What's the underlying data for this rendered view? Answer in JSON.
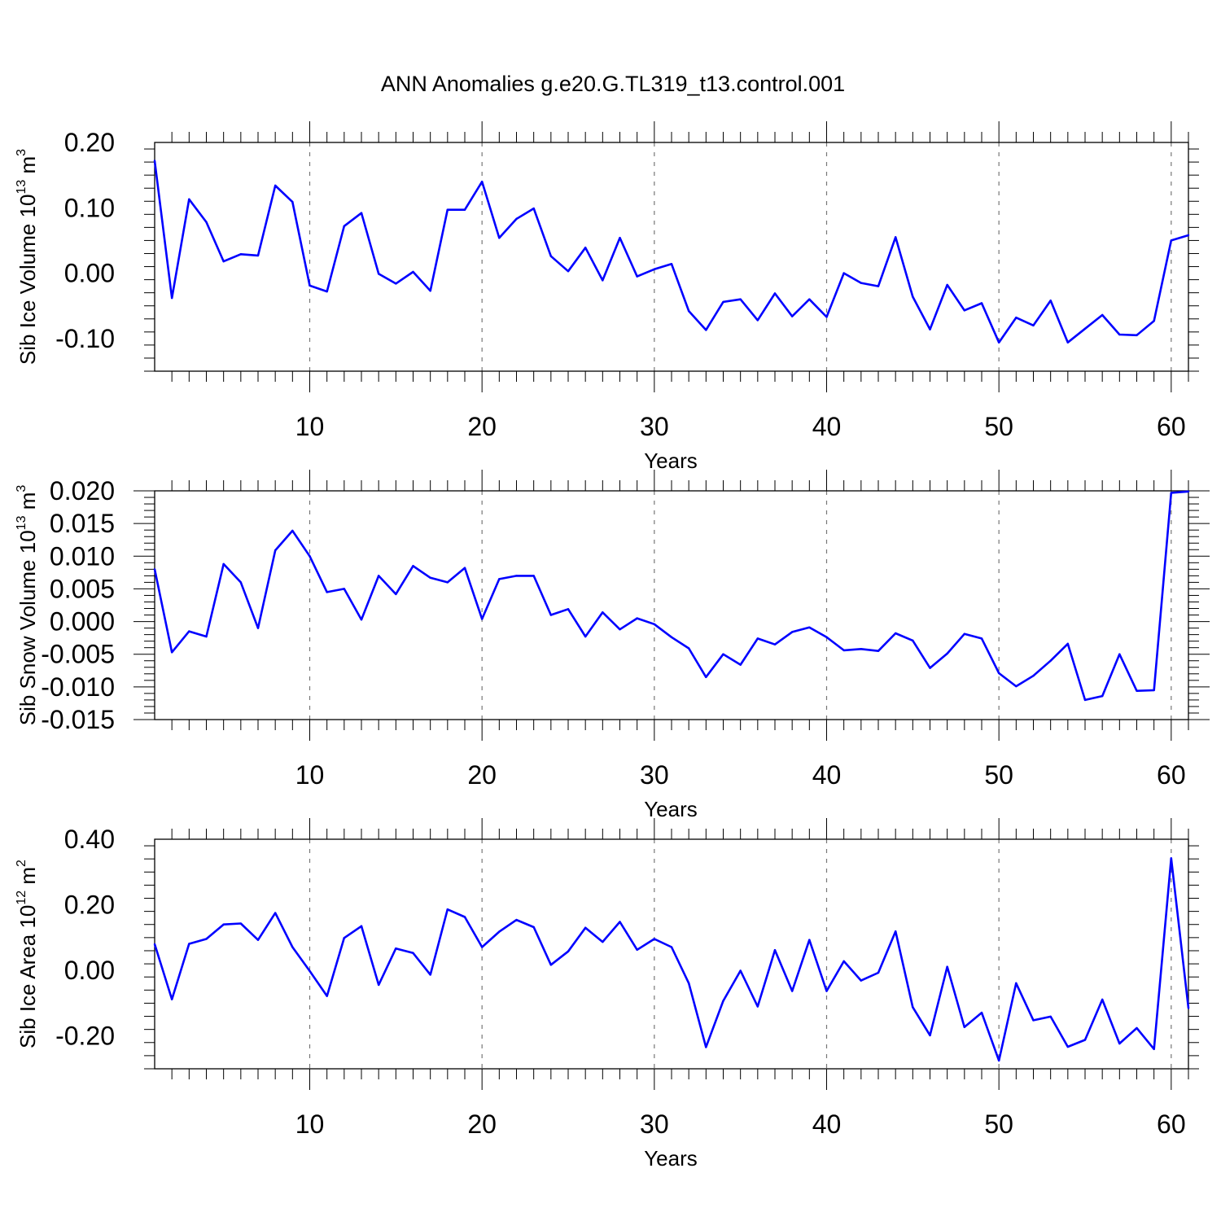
{
  "title": "ANN Anomalies g.e20.G.TL319_t13.control.001",
  "colors": {
    "series": "#0000ff",
    "grid": "#777777",
    "axes": "#000000"
  },
  "chart_data": [
    {
      "type": "line",
      "xlabel": "Years",
      "ylabel_text": "Sib Ice Volume 10",
      "ylabel_exp": "13",
      "ylabel_unit": " m",
      "ylabel_unit_exp": "3",
      "xlim": [
        1,
        61
      ],
      "ylim": [
        -0.15,
        0.2
      ],
      "y_ticks": [
        "0.20",
        "0.10",
        "0.00",
        "-0.10"
      ],
      "x_ticks": [
        "10",
        "20",
        "30",
        "40",
        "50",
        "60"
      ],
      "x_grid": "dashed at 10, 20, 30, 40, 50, 60",
      "x": [
        1,
        2,
        3,
        4,
        5,
        6,
        7,
        8,
        9,
        10,
        11,
        12,
        13,
        14,
        15,
        16,
        17,
        18,
        19,
        20,
        21,
        22,
        23,
        24,
        25,
        26,
        27,
        28,
        29,
        30,
        31,
        32,
        33,
        34,
        35,
        36,
        37,
        38,
        39,
        40,
        41,
        42,
        43,
        44,
        45,
        46,
        47,
        48,
        49,
        50,
        51,
        52,
        53,
        54,
        55,
        56,
        57,
        58,
        59,
        60,
        61
      ],
      "values": [
        0.172,
        -0.038,
        0.113,
        0.078,
        0.018,
        0.029,
        0.027,
        0.134,
        0.109,
        -0.019,
        -0.028,
        0.072,
        0.092,
        -0.001,
        -0.016,
        0.002,
        -0.027,
        0.097,
        0.097,
        0.14,
        0.054,
        0.083,
        0.099,
        0.026,
        0.003,
        0.039,
        -0.011,
        0.054,
        -0.005,
        0.006,
        0.014,
        -0.058,
        -0.087,
        -0.044,
        -0.04,
        -0.072,
        -0.031,
        -0.066,
        -0.04,
        -0.067,
        0.0,
        -0.015,
        -0.02,
        0.055,
        -0.036,
        -0.086,
        -0.018,
        -0.057,
        -0.046,
        -0.106,
        -0.068,
        -0.08,
        -0.042,
        -0.106,
        -0.085,
        -0.064,
        -0.094,
        -0.095,
        -0.073,
        0.05,
        0.058
      ]
    },
    {
      "type": "line",
      "xlabel": "Years",
      "ylabel_text": "Sib Snow Volume 10",
      "ylabel_exp": "13",
      "ylabel_unit": " m",
      "ylabel_unit_exp": "3",
      "xlim": [
        1,
        61
      ],
      "ylim": [
        -0.015,
        0.02
      ],
      "y_ticks": [
        "0.020",
        "0.015",
        "0.010",
        "0.005",
        "0.000",
        "-0.005",
        "-0.010",
        "-0.015"
      ],
      "x_ticks": [
        "10",
        "20",
        "30",
        "40",
        "50",
        "60"
      ],
      "x_grid": "dashed at 10, 20, 30, 40, 50, 60",
      "x": [
        1,
        2,
        3,
        4,
        5,
        6,
        7,
        8,
        9,
        10,
        11,
        12,
        13,
        14,
        15,
        16,
        17,
        18,
        19,
        20,
        21,
        22,
        23,
        24,
        25,
        26,
        27,
        28,
        29,
        30,
        31,
        32,
        33,
        34,
        35,
        36,
        37,
        38,
        39,
        40,
        41,
        42,
        43,
        44,
        45,
        46,
        47,
        48,
        49,
        50,
        51,
        52,
        53,
        54,
        55,
        56,
        57,
        58,
        59,
        60,
        61
      ],
      "values": [
        0.008,
        -0.0047,
        -0.0015,
        -0.0023,
        0.0088,
        0.006,
        -0.001,
        0.0109,
        0.0139,
        0.01,
        0.0045,
        0.005,
        0.0003,
        0.007,
        0.0042,
        0.0085,
        0.0067,
        0.006,
        0.0082,
        0.0004,
        0.0065,
        0.007,
        0.007,
        0.001,
        0.0019,
        -0.0023,
        0.0014,
        -0.0012,
        0.0005,
        -0.0004,
        -0.0024,
        -0.0041,
        -0.0085,
        -0.005,
        -0.0066,
        -0.0026,
        -0.0035,
        -0.0016,
        -0.0009,
        -0.0024,
        -0.0044,
        -0.0042,
        -0.0045,
        -0.0018,
        -0.0029,
        -0.0071,
        -0.0049,
        -0.0019,
        -0.0026,
        -0.0079,
        -0.0099,
        -0.0083,
        -0.006,
        -0.0034,
        -0.012,
        -0.0114,
        -0.005,
        -0.0106,
        -0.0105,
        0.0197,
        0.0199
      ]
    },
    {
      "type": "line",
      "xlabel": "Years",
      "ylabel_text": "Sib Ice Area 10",
      "ylabel_exp": "12",
      "ylabel_unit": " m",
      "ylabel_unit_exp": "2",
      "xlim": [
        1,
        61
      ],
      "ylim": [
        -0.3,
        0.4
      ],
      "y_ticks": [
        "0.40",
        "0.20",
        "0.00",
        "-0.20"
      ],
      "x_ticks": [
        "10",
        "20",
        "30",
        "40",
        "50",
        "60"
      ],
      "x_grid": "dashed at 10, 20, 30, 40, 50, 60",
      "x": [
        1,
        2,
        3,
        4,
        5,
        6,
        7,
        8,
        9,
        10,
        11,
        12,
        13,
        14,
        15,
        16,
        17,
        18,
        19,
        20,
        21,
        22,
        23,
        24,
        25,
        26,
        27,
        28,
        29,
        30,
        31,
        32,
        33,
        34,
        35,
        36,
        37,
        38,
        39,
        40,
        41,
        42,
        43,
        44,
        45,
        46,
        47,
        48,
        49,
        50,
        51,
        52,
        53,
        54,
        55,
        56,
        57,
        58,
        59,
        60,
        61
      ],
      "values": [
        0.08,
        -0.088,
        0.081,
        0.096,
        0.14,
        0.143,
        0.093,
        0.175,
        0.071,
        -0.002,
        -0.078,
        0.099,
        0.135,
        -0.044,
        0.067,
        0.053,
        -0.013,
        0.186,
        0.163,
        0.071,
        0.118,
        0.154,
        0.132,
        0.017,
        0.058,
        0.13,
        0.087,
        0.148,
        0.063,
        0.096,
        0.071,
        -0.039,
        -0.234,
        -0.093,
        -0.001,
        -0.11,
        0.062,
        -0.063,
        0.093,
        -0.063,
        0.028,
        -0.031,
        -0.007,
        0.119,
        -0.112,
        -0.198,
        0.011,
        -0.173,
        -0.129,
        -0.275,
        -0.039,
        -0.152,
        -0.141,
        -0.233,
        -0.212,
        -0.089,
        -0.223,
        -0.176,
        -0.24,
        0.342,
        -0.115
      ]
    }
  ]
}
